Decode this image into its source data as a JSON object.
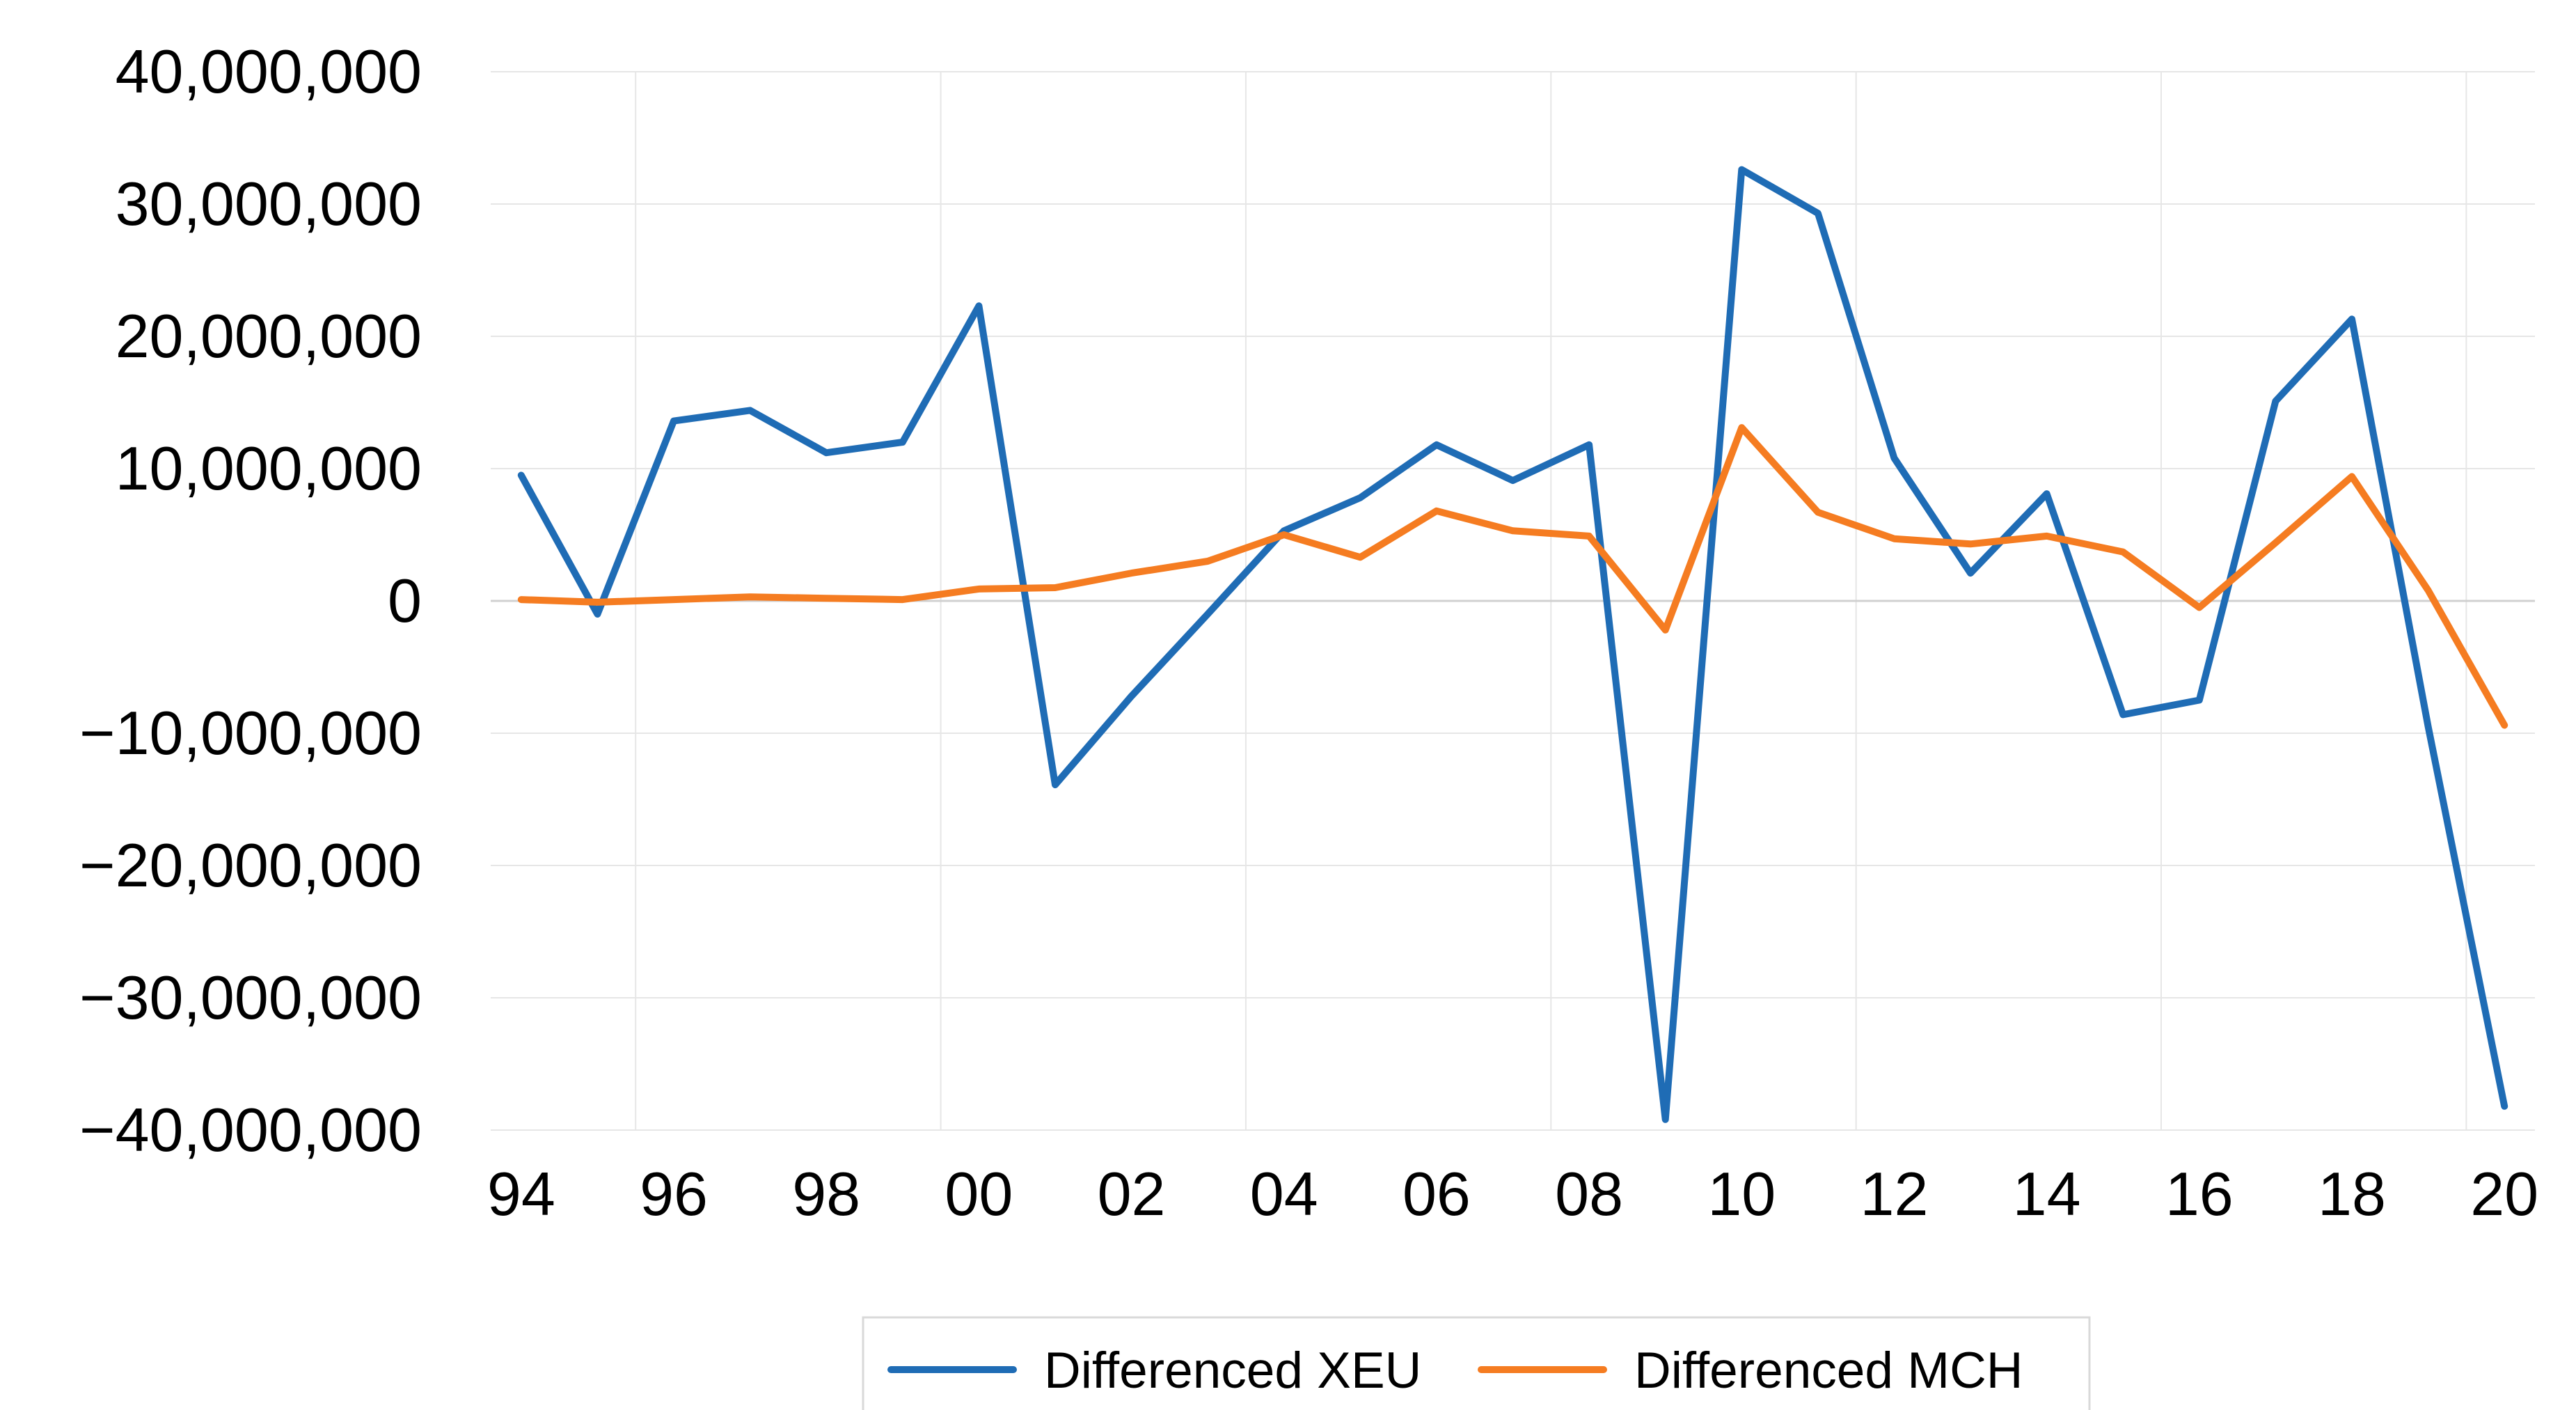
{
  "chart_data": {
    "type": "line",
    "title": "",
    "xlabel": "",
    "ylabel": "",
    "ylim": [
      -40000000,
      40000000
    ],
    "xlim": [
      1993.6,
      2020.4
    ],
    "grid": true,
    "legend_position": "bottom",
    "y_ticks": [
      {
        "value": 40000000,
        "label": "40,000,000"
      },
      {
        "value": 30000000,
        "label": "30,000,000"
      },
      {
        "value": 20000000,
        "label": "20,000,000"
      },
      {
        "value": 10000000,
        "label": "10,000,000"
      },
      {
        "value": 0,
        "label": "0"
      },
      {
        "value": -10000000,
        "label": "−10,000,000"
      },
      {
        "value": -20000000,
        "label": "−20,000,000"
      },
      {
        "value": -30000000,
        "label": "−30,000,000"
      },
      {
        "value": -40000000,
        "label": "−40,000,000"
      }
    ],
    "x_ticks": [
      {
        "value": 1994,
        "label": "94"
      },
      {
        "value": 1996,
        "label": "96"
      },
      {
        "value": 1998,
        "label": "98"
      },
      {
        "value": 2000,
        "label": "00"
      },
      {
        "value": 2002,
        "label": "02"
      },
      {
        "value": 2004,
        "label": "04"
      },
      {
        "value": 2006,
        "label": "06"
      },
      {
        "value": 2008,
        "label": "08"
      },
      {
        "value": 2010,
        "label": "10"
      },
      {
        "value": 2012,
        "label": "12"
      },
      {
        "value": 2014,
        "label": "14"
      },
      {
        "value": 2016,
        "label": "16"
      },
      {
        "value": 2018,
        "label": "18"
      },
      {
        "value": 2020,
        "label": "20"
      }
    ],
    "x_grid": [
      1995.5,
      1999.5,
      2003.5,
      2007.5,
      2011.5,
      2015.5,
      2019.5
    ],
    "x": [
      1994,
      1995,
      1996,
      1997,
      1998,
      1999,
      2000,
      2001,
      2002,
      2003,
      2004,
      2005,
      2006,
      2007,
      2008,
      2009,
      2010,
      2011,
      2012,
      2013,
      2014,
      2015,
      2016,
      2017,
      2018,
      2019,
      2020
    ],
    "series": [
      {
        "name": "Differenced XEU",
        "color": "#1f6cb5",
        "values": [
          9500000,
          -1000000,
          13600000,
          14400000,
          11200000,
          12000000,
          22300000,
          -13900000,
          -7200000,
          -1000000,
          5300000,
          7800000,
          11800000,
          9100000,
          11800000,
          -39200000,
          32600000,
          29300000,
          10800000,
          2100000,
          8100000,
          -8600000,
          -7500000,
          15100000,
          21300000,
          -9500000,
          -38200000
        ]
      },
      {
        "name": "Differenced MCH",
        "color": "#f57c21",
        "values": [
          100000,
          -100000,
          100000,
          300000,
          200000,
          100000,
          900000,
          1000000,
          2100000,
          3000000,
          5000000,
          3300000,
          6800000,
          5300000,
          4900000,
          -2200000,
          13100000,
          6700000,
          4700000,
          4300000,
          4900000,
          3700000,
          -500000,
          4400000,
          9400000,
          800000,
          -9400000
        ]
      }
    ]
  }
}
